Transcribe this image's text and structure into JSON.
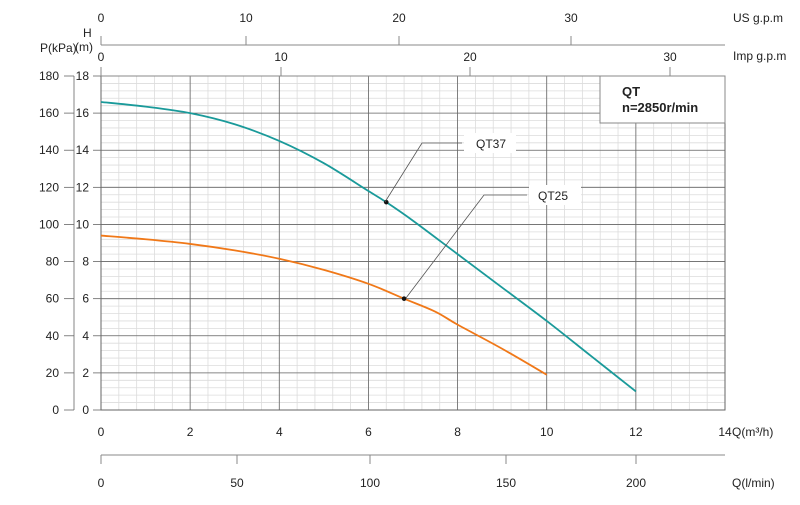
{
  "chart_data": {
    "type": "line",
    "title": "QT n=2850r/min",
    "info_box": {
      "model": "QT",
      "speed": "n=2850r/min"
    },
    "xlabel": "Q(m³/h)",
    "ylabel": "H (m)",
    "ylabel_h_line1": "H",
    "ylabel_h_line2": "(m)",
    "ylabel_p": "P(kPa)",
    "xlim": [
      0,
      14
    ],
    "ylim": [
      0,
      18
    ],
    "x_ticks": [
      0,
      2,
      4,
      6,
      8,
      10,
      12,
      14
    ],
    "y_ticks": [
      0,
      2,
      4,
      6,
      8,
      10,
      12,
      14,
      16,
      18
    ],
    "p_ticks": [
      0,
      20,
      40,
      60,
      80,
      100,
      120,
      140,
      160,
      180
    ],
    "grid": true,
    "secondary_axes": {
      "us_gpm": {
        "label": "US g.p.m",
        "ticks": [
          0,
          10,
          20,
          30
        ]
      },
      "imp_gpm": {
        "label": "Imp g.p.m",
        "ticks": [
          0,
          10,
          20,
          30
        ]
      },
      "l_min": {
        "label": "Q(l/min)",
        "ticks": [
          0,
          50,
          100,
          150,
          200
        ]
      }
    },
    "series": [
      {
        "name": "QT37",
        "color": "#1a9a9a",
        "x": [
          0,
          1,
          2,
          3,
          4,
          5,
          6,
          6.4,
          7,
          8,
          9,
          10,
          11,
          12
        ],
        "y": [
          16.6,
          16.35,
          16.0,
          15.4,
          14.5,
          13.3,
          11.8,
          11.2,
          10.2,
          8.4,
          6.6,
          4.8,
          2.9,
          1.0
        ],
        "marker": {
          "x": 6.4,
          "y": 11.2
        }
      },
      {
        "name": "QT25",
        "color": "#f07818",
        "x": [
          0,
          1,
          2,
          3,
          4,
          5,
          6,
          6.8,
          7.5,
          8,
          9,
          10
        ],
        "y": [
          9.4,
          9.2,
          8.95,
          8.6,
          8.15,
          7.55,
          6.8,
          6.0,
          5.3,
          4.6,
          3.3,
          1.9
        ],
        "marker": {
          "x": 6.8,
          "y": 6.0
        }
      }
    ]
  }
}
